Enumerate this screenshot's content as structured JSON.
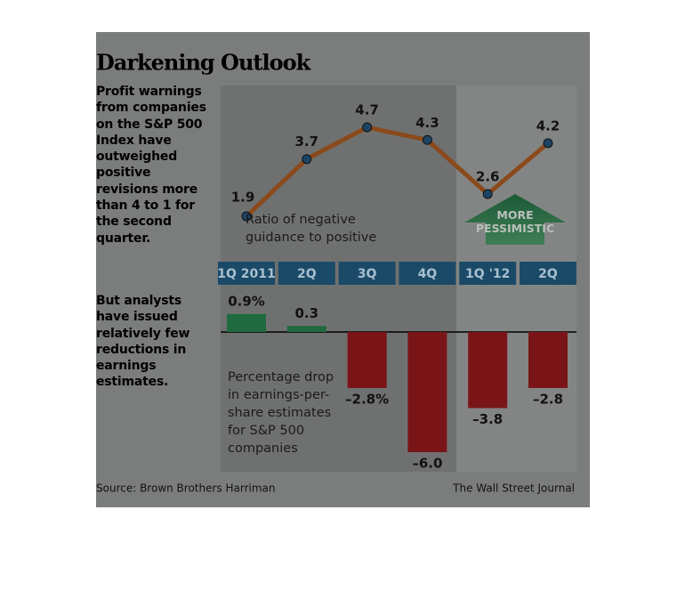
{
  "title": "Darkening Outlook",
  "source": "Source: Brown Brothers Harriman",
  "credit": "The Wall Street Journal",
  "chart_data": [
    {
      "type": "line",
      "description": "Profit warnings from companies on the S&P 500 Index have outweighed positive revisions more than 4 to 1 for the second quarter.",
      "annotation": "Ratio of negative guidance to positive",
      "callout": "MORE PESSIMISTIC",
      "categories": [
        "1Q 2011",
        "2Q",
        "3Q",
        "4Q",
        "1Q '12",
        "2Q"
      ],
      "values": [
        1.9,
        3.7,
        4.7,
        4.3,
        2.6,
        4.2
      ],
      "color": "#8a4a1c",
      "marker_color": "#1d4563"
    },
    {
      "type": "bar",
      "description": "But analysts have issued relatively few reductions in earnings estimates.",
      "annotation": "Percentage drop in earnings-per-share estimates for S&P 500 companies",
      "values": [
        0.9,
        0.3,
        -2.8,
        -6.0,
        -3.8,
        -2.8
      ],
      "value_labels": [
        "0.9%",
        "0.3",
        "–2.8%",
        "–6.0",
        "–3.8",
        "–2.8"
      ],
      "positive_color": "#1f6a3e",
      "negative_color": "#7a1517"
    }
  ]
}
